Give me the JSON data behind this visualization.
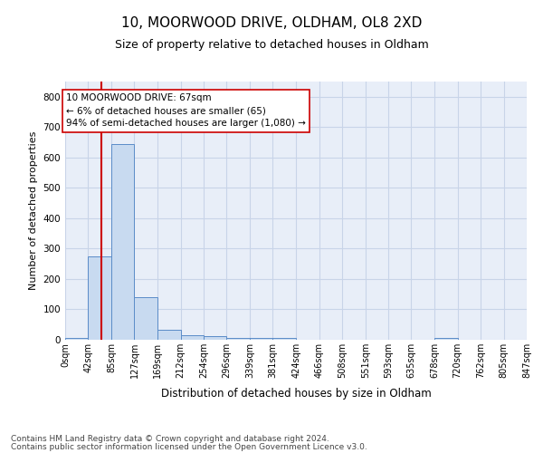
{
  "title_line1": "10, MOORWOOD DRIVE, OLDHAM, OL8 2XD",
  "title_line2": "Size of property relative to detached houses in Oldham",
  "xlabel": "Distribution of detached houses by size in Oldham",
  "ylabel": "Number of detached properties",
  "footer_line1": "Contains HM Land Registry data © Crown copyright and database right 2024.",
  "footer_line2": "Contains public sector information licensed under the Open Government Licence v3.0.",
  "bin_edges": [
    0,
    42,
    85,
    127,
    169,
    212,
    254,
    296,
    339,
    381,
    424,
    466,
    508,
    551,
    593,
    635,
    678,
    720,
    762,
    805,
    847
  ],
  "bar_heights": [
    5,
    275,
    645,
    140,
    33,
    16,
    11,
    7,
    5,
    7,
    0,
    0,
    0,
    0,
    0,
    0,
    5,
    0,
    0,
    0
  ],
  "bar_color": "#c8daf0",
  "bar_edge_color": "#5b8cc8",
  "grid_color": "#c8d4e8",
  "background_color": "#e8eef8",
  "vline_x": 67,
  "vline_color": "#cc0000",
  "annotation_text": "10 MOORWOOD DRIVE: 67sqm\n← 6% of detached houses are smaller (65)\n94% of semi-detached houses are larger (1,080) →",
  "annotation_box_color": "white",
  "annotation_box_edge": "#cc0000",
  "ylim": [
    0,
    850
  ],
  "yticks": [
    0,
    100,
    200,
    300,
    400,
    500,
    600,
    700,
    800
  ],
  "property_size": 67,
  "title_fontsize": 11,
  "subtitle_fontsize": 9,
  "ylabel_fontsize": 8,
  "xlabel_fontsize": 8.5,
  "tick_fontsize": 7,
  "footer_fontsize": 6.5,
  "annot_fontsize": 7.5
}
